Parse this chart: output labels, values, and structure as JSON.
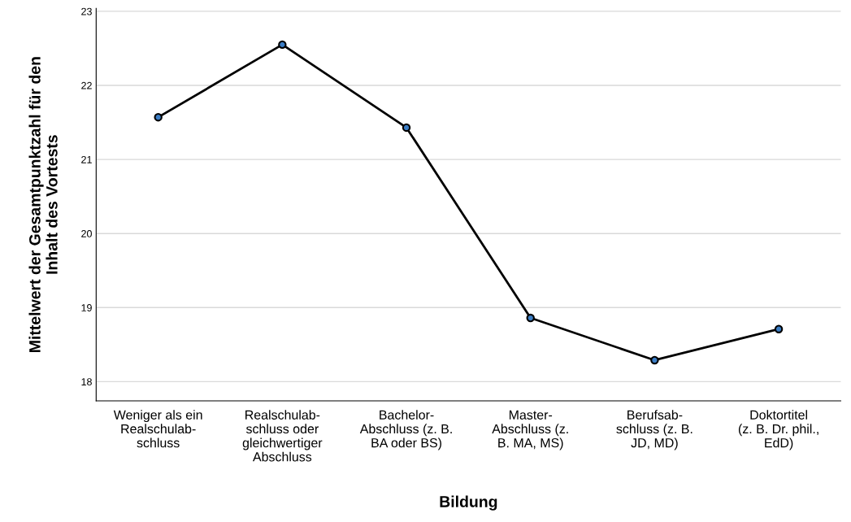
{
  "chart_data": {
    "type": "line",
    "xlabel": "Bildung",
    "ylabel": "Mittelwert der Gesamtpunktzahl für den\nInhalt des Vortests",
    "categories": [
      "Weniger als ein\nRealschulab-\nschluss",
      "Realschulab-\nschluss oder\ngleichwertiger\nAbschluss",
      "Bachelor-\nAbschluss (z. B.\nBA oder BS)",
      "Master-\nAbschluss (z.\nB. MA, MS)",
      "Berufsab-\nschluss (z. B.\nJD, MD)",
      "Doktortitel\n(z. B. Dr. phil.,\nEdD)"
    ],
    "series": [
      {
        "color": "#000000",
        "values": [
          21.57,
          22.55,
          21.43,
          18.86,
          18.29,
          18.71
        ]
      }
    ],
    "ylim": [
      17.74,
      23.04
    ],
    "yticks": [
      18,
      19,
      20,
      21,
      22,
      23
    ],
    "grid": "y",
    "marker": "circle",
    "line_style": "solid"
  }
}
